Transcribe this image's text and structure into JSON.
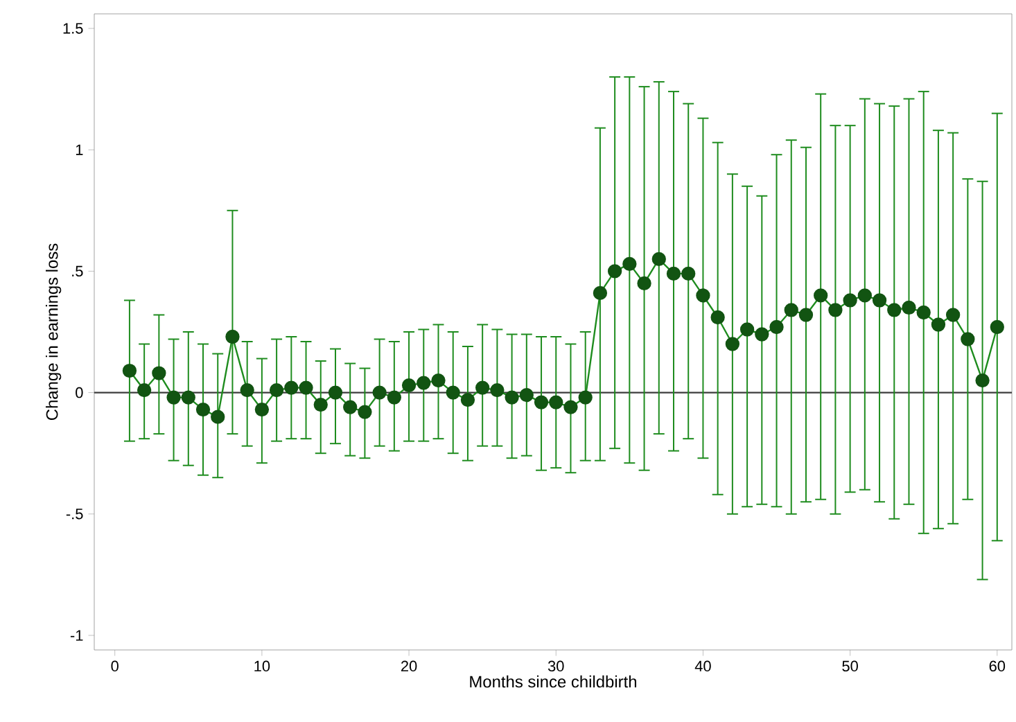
{
  "chart_data": {
    "type": "line",
    "xlabel": "Months since childbirth",
    "ylabel": "Change in earnings loss",
    "x": [
      1,
      2,
      3,
      4,
      5,
      6,
      7,
      8,
      9,
      10,
      11,
      12,
      13,
      14,
      15,
      16,
      17,
      18,
      19,
      20,
      21,
      22,
      23,
      24,
      25,
      26,
      27,
      28,
      29,
      30,
      31,
      32,
      33,
      34,
      35,
      36,
      37,
      38,
      39,
      40,
      41,
      42,
      43,
      44,
      45,
      46,
      47,
      48,
      49,
      50,
      51,
      52,
      53,
      54,
      55,
      56,
      57,
      58,
      59,
      60
    ],
    "series": [
      {
        "color": "#1e8c1e",
        "values": [
          0.09,
          0.01,
          0.08,
          -0.02,
          -0.02,
          -0.07,
          -0.1,
          0.23,
          0.01,
          -0.07,
          0.01,
          0.02,
          0.02,
          -0.05,
          0.0,
          -0.06,
          -0.08,
          0.0,
          -0.02,
          0.03,
          0.04,
          0.05,
          0.0,
          -0.03,
          0.02,
          0.01,
          -0.02,
          -0.01,
          -0.04,
          -0.04,
          -0.06,
          -0.02,
          0.41,
          0.5,
          0.53,
          0.45,
          0.55,
          0.49,
          0.49,
          0.4,
          0.31,
          0.2,
          0.26,
          0.24,
          0.27,
          0.34,
          0.32,
          0.4,
          0.34,
          0.38,
          0.4,
          0.38,
          0.34,
          0.35,
          0.33,
          0.28,
          0.32,
          0.22,
          0.05,
          0.27
        ],
        "errors": [
          [
            -0.2,
            0.38
          ],
          [
            -0.19,
            0.2
          ],
          [
            -0.17,
            0.32
          ],
          [
            -0.28,
            0.22
          ],
          [
            -0.3,
            0.25
          ],
          [
            -0.34,
            0.2
          ],
          [
            -0.35,
            0.16
          ],
          [
            -0.17,
            0.75
          ],
          [
            -0.22,
            0.21
          ],
          [
            -0.29,
            0.14
          ],
          [
            -0.2,
            0.22
          ],
          [
            -0.19,
            0.23
          ],
          [
            -0.19,
            0.21
          ],
          [
            -0.25,
            0.13
          ],
          [
            -0.21,
            0.18
          ],
          [
            -0.26,
            0.12
          ],
          [
            -0.27,
            0.1
          ],
          [
            -0.22,
            0.22
          ],
          [
            -0.24,
            0.21
          ],
          [
            -0.2,
            0.25
          ],
          [
            -0.2,
            0.26
          ],
          [
            -0.19,
            0.28
          ],
          [
            -0.25,
            0.25
          ],
          [
            -0.28,
            0.19
          ],
          [
            -0.22,
            0.28
          ],
          [
            -0.22,
            0.26
          ],
          [
            -0.27,
            0.24
          ],
          [
            -0.26,
            0.24
          ],
          [
            -0.32,
            0.23
          ],
          [
            -0.31,
            0.23
          ],
          [
            -0.33,
            0.2
          ],
          [
            -0.28,
            0.25
          ],
          [
            -0.28,
            1.09
          ],
          [
            -0.23,
            1.3
          ],
          [
            -0.29,
            1.3
          ],
          [
            -0.32,
            1.26
          ],
          [
            -0.17,
            1.28
          ],
          [
            -0.24,
            1.24
          ],
          [
            -0.19,
            1.19
          ],
          [
            -0.27,
            1.13
          ],
          [
            -0.42,
            1.03
          ],
          [
            -0.5,
            0.9
          ],
          [
            -0.47,
            0.85
          ],
          [
            -0.46,
            0.81
          ],
          [
            -0.47,
            0.98
          ],
          [
            -0.5,
            1.04
          ],
          [
            -0.45,
            1.01
          ],
          [
            -0.44,
            1.23
          ],
          [
            -0.5,
            1.1
          ],
          [
            -0.41,
            1.1
          ],
          [
            -0.4,
            1.21
          ],
          [
            -0.45,
            1.19
          ],
          [
            -0.52,
            1.18
          ],
          [
            -0.46,
            1.21
          ],
          [
            -0.58,
            1.24
          ],
          [
            -0.56,
            1.08
          ],
          [
            -0.54,
            1.07
          ],
          [
            -0.44,
            0.88
          ],
          [
            -0.77,
            0.87
          ],
          [
            -0.61,
            1.15
          ]
        ]
      }
    ],
    "xlim": [
      -1.4,
      61
    ],
    "xticks": [
      0,
      10,
      20,
      30,
      40,
      50,
      60
    ],
    "ylim": [
      -1.06,
      1.56
    ],
    "yticks": [
      {
        "value": -1,
        "label": "-1"
      },
      {
        "value": -0.5,
        "label": "-.5"
      },
      {
        "value": 0,
        "label": "0"
      },
      {
        "value": 0.5,
        "label": ".5"
      },
      {
        "value": 1,
        "label": "1"
      },
      {
        "value": 1.5,
        "label": "1.5"
      }
    ],
    "ref_lines": [
      {
        "axis": "y",
        "value": 0,
        "color": "#3c3c3c"
      }
    ],
    "marker": "circle"
  }
}
